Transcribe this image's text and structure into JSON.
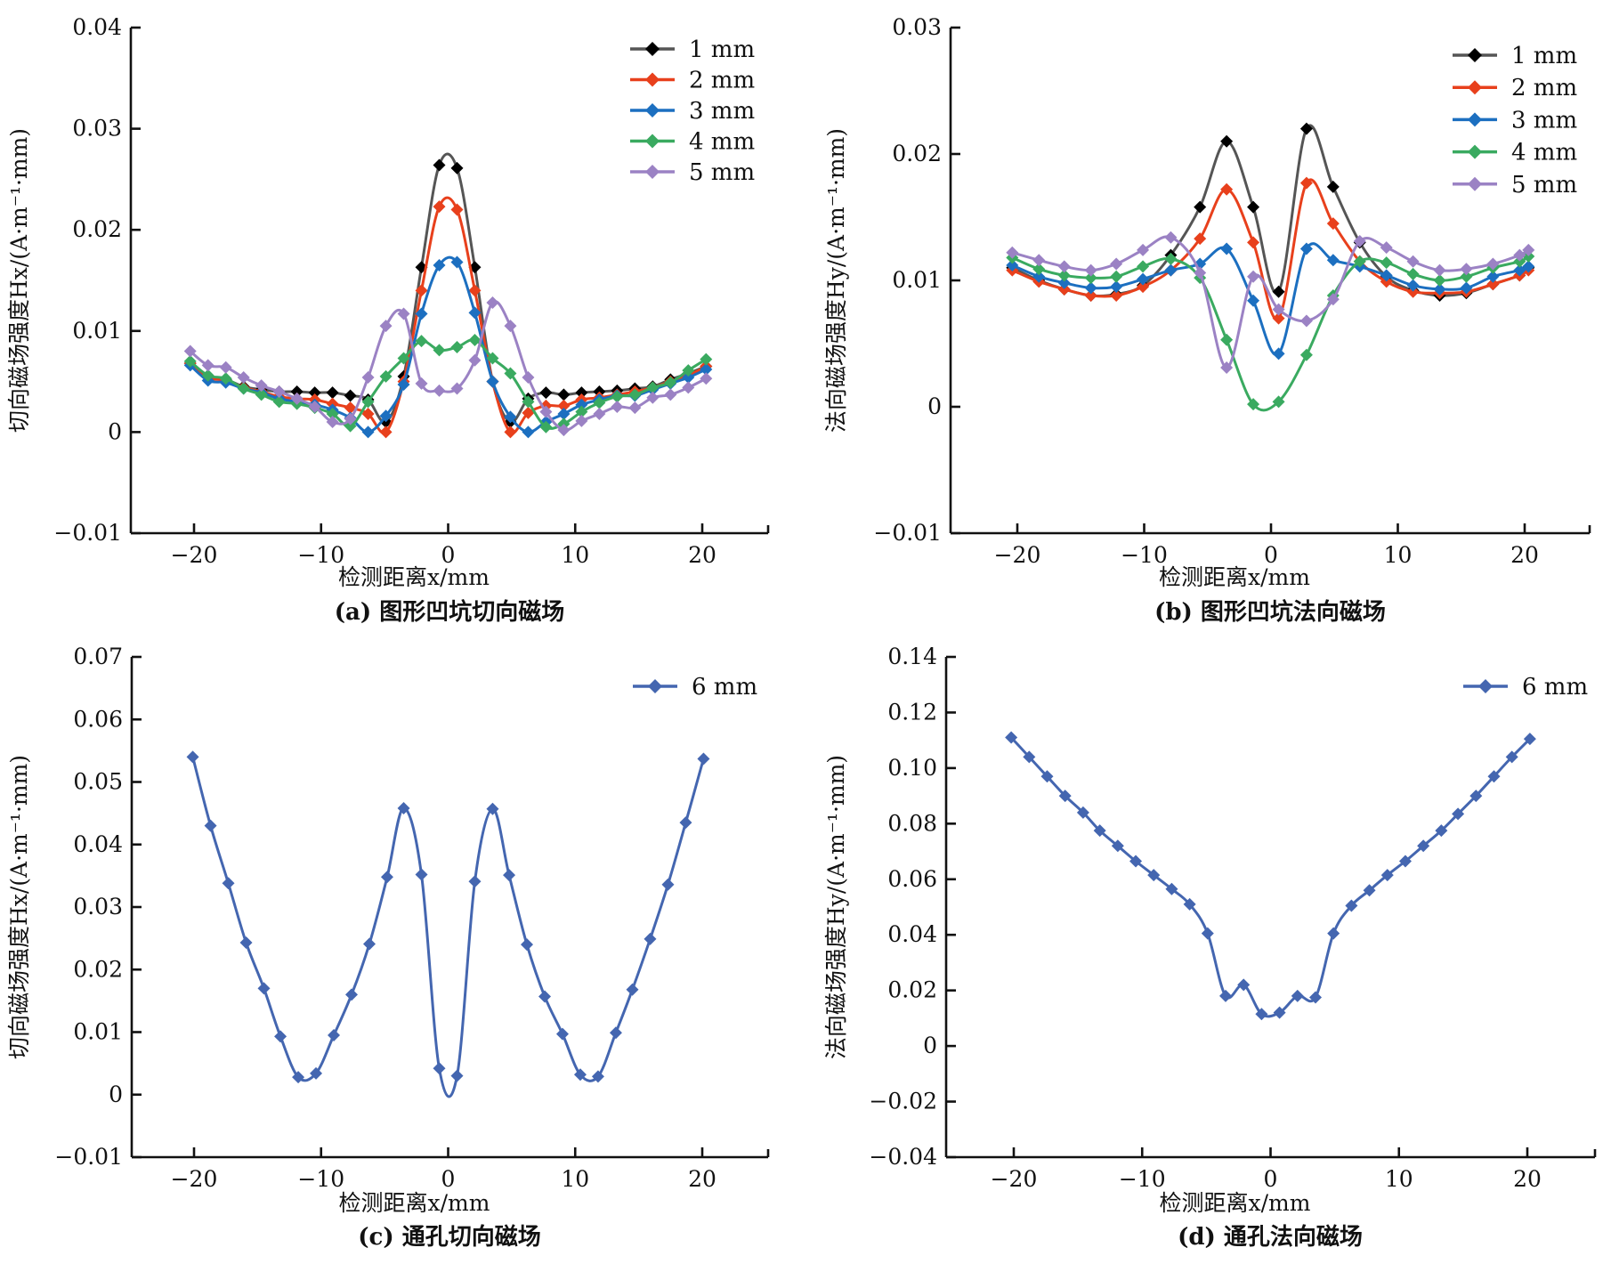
{
  "chart_data": [
    {
      "id": "a",
      "type": "line",
      "caption": "(a) 图形凹坑切向磁场",
      "title": "",
      "xlabel": "检测距离x/mm",
      "ylabel": "切向磁场强度Hx/(A·m⁻¹·mm)",
      "xlim": [
        -25,
        25
      ],
      "ylim": [
        -0.01,
        0.04
      ],
      "xticks": [
        -20,
        -10,
        0,
        10,
        20
      ],
      "xtick_labels": [
        "−20",
        "−10",
        "0",
        "10",
        "20"
      ],
      "yticks": [
        -0.01,
        0,
        0.01,
        0.02,
        0.03,
        0.04
      ],
      "ytick_labels": [
        "−0.01",
        "0",
        "0.01",
        "0.02",
        "0.03",
        "0.04"
      ],
      "grid": false,
      "legend_position": "top-right",
      "x": [
        -20.3,
        -18.9,
        -17.5,
        -16.1,
        -14.7,
        -13.3,
        -11.9,
        -10.5,
        -9.1,
        -7.7,
        -6.3,
        -4.9,
        -3.5,
        -2.1,
        -0.7,
        0.7,
        2.1,
        3.5,
        4.9,
        6.3,
        7.7,
        9.1,
        10.5,
        11.9,
        13.3,
        14.7,
        16.1,
        17.5,
        18.9,
        20.3
      ],
      "series": [
        {
          "name": "1 mm",
          "color": "#000000",
          "line_color": "#555555",
          "values": [
            0.0068,
            0.0055,
            0.0052,
            0.0045,
            0.0042,
            0.004,
            0.004,
            0.0039,
            0.0039,
            0.0036,
            0.0032,
            0.001,
            0.0055,
            0.0163,
            0.0264,
            0.0261,
            0.0163,
            0.005,
            0.001,
            0.0033,
            0.0039,
            0.0037,
            0.0039,
            0.004,
            0.0041,
            0.0043,
            0.0045,
            0.0052,
            0.0058,
            0.0065
          ]
        },
        {
          "name": "2 mm",
          "color": "#e8401c",
          "line_color": "#e8401c",
          "values": [
            0.0068,
            0.0054,
            0.0051,
            0.0044,
            0.004,
            0.0035,
            0.0033,
            0.0032,
            0.0028,
            0.0024,
            0.0018,
            0.0,
            0.005,
            0.014,
            0.0223,
            0.022,
            0.014,
            0.005,
            0.0,
            0.0019,
            0.0026,
            0.0026,
            0.0032,
            0.0034,
            0.0037,
            0.004,
            0.0044,
            0.005,
            0.0056,
            0.0065
          ]
        },
        {
          "name": "3 mm",
          "color": "#1c6fc0",
          "line_color": "#1c6fc0",
          "values": [
            0.0066,
            0.0051,
            0.0049,
            0.0043,
            0.0039,
            0.0033,
            0.003,
            0.0027,
            0.0022,
            0.0014,
            0.0,
            0.0016,
            0.0047,
            0.0117,
            0.0165,
            0.0168,
            0.0118,
            0.005,
            0.0015,
            0.0,
            0.001,
            0.0018,
            0.0027,
            0.0032,
            0.0036,
            0.0036,
            0.0042,
            0.0048,
            0.0054,
            0.0062
          ]
        },
        {
          "name": "4 mm",
          "color": "#3aaa60",
          "line_color": "#3aaa60",
          "values": [
            0.007,
            0.0056,
            0.0053,
            0.0043,
            0.0037,
            0.003,
            0.0028,
            0.0024,
            0.0018,
            0.0006,
            0.003,
            0.0055,
            0.0073,
            0.009,
            0.0081,
            0.0084,
            0.0091,
            0.0073,
            0.0058,
            0.003,
            0.0005,
            0.0008,
            0.002,
            0.0029,
            0.0035,
            0.0037,
            0.0044,
            0.0049,
            0.0061,
            0.0072
          ]
        },
        {
          "name": "5 mm",
          "color": "#9b82c4",
          "line_color": "#9b82c4",
          "values": [
            0.008,
            0.0066,
            0.0064,
            0.0054,
            0.0046,
            0.004,
            0.0033,
            0.0025,
            0.001,
            0.0013,
            0.0054,
            0.0105,
            0.0117,
            0.0048,
            0.0041,
            0.0043,
            0.0071,
            0.0128,
            0.0105,
            0.0054,
            0.002,
            0.0002,
            0.0011,
            0.0018,
            0.0025,
            0.0024,
            0.0034,
            0.0037,
            0.0044,
            0.0053
          ]
        }
      ]
    },
    {
      "id": "b",
      "type": "line",
      "caption": "(b) 图形凹坑法向磁场",
      "title": "",
      "xlabel": "检测距离x/mm",
      "ylabel": "法向磁场强度Hy/(A·m⁻¹·mm)",
      "xlim": [
        -25,
        25
      ],
      "ylim": [
        -0.01,
        0.03
      ],
      "xticks": [
        -20,
        -10,
        0,
        10,
        20
      ],
      "xtick_labels": [
        "−20",
        "−10",
        "0",
        "10",
        "20"
      ],
      "yticks": [
        -0.01,
        0,
        0.01,
        0.02,
        0.03
      ],
      "ytick_labels": [
        "−0.01",
        "0",
        "0.01",
        "0.02",
        "0.03"
      ],
      "grid": false,
      "legend_position": "top-right",
      "x": [
        -20.4,
        -18.3,
        -16.3,
        -14.2,
        -12.2,
        -10.1,
        -7.9,
        -5.6,
        -3.5,
        -1.4,
        0.6,
        2.8,
        4.9,
        7.0,
        9.1,
        11.2,
        13.3,
        15.4,
        17.5,
        19.6,
        20.3
      ],
      "series": [
        {
          "name": "1 mm",
          "color": "#000000",
          "line_color": "#555555",
          "values": [
            0.011,
            0.01,
            0.0093,
            0.0088,
            0.0089,
            0.0096,
            0.012,
            0.0158,
            0.021,
            0.0158,
            0.0091,
            0.022,
            0.0174,
            0.013,
            0.0103,
            0.0092,
            0.0088,
            0.009,
            0.0097,
            0.0104,
            0.011
          ]
        },
        {
          "name": "2 mm",
          "color": "#e8401c",
          "line_color": "#e8401c",
          "values": [
            0.0108,
            0.0099,
            0.0093,
            0.0088,
            0.0088,
            0.0095,
            0.0108,
            0.0133,
            0.0172,
            0.013,
            0.007,
            0.0177,
            0.0145,
            0.0115,
            0.0099,
            0.0091,
            0.009,
            0.0091,
            0.0097,
            0.0104,
            0.0108
          ]
        },
        {
          "name": "3 mm",
          "color": "#1c6fc0",
          "line_color": "#1c6fc0",
          "values": [
            0.0112,
            0.0103,
            0.0098,
            0.0094,
            0.0095,
            0.0101,
            0.0108,
            0.0113,
            0.0125,
            0.0084,
            0.0042,
            0.0125,
            0.0116,
            0.0111,
            0.0104,
            0.0096,
            0.0093,
            0.0094,
            0.0103,
            0.0108,
            0.0111
          ]
        },
        {
          "name": "4 mm",
          "color": "#3aaa60",
          "line_color": "#3aaa60",
          "values": [
            0.0118,
            0.0109,
            0.0104,
            0.0102,
            0.0103,
            0.0111,
            0.0117,
            0.0102,
            0.0053,
            0.0002,
            0.0004,
            0.0041,
            0.0088,
            0.0115,
            0.0114,
            0.0105,
            0.01,
            0.0103,
            0.011,
            0.0115,
            0.0119
          ]
        },
        {
          "name": "5 mm",
          "color": "#9b82c4",
          "line_color": "#9b82c4",
          "values": [
            0.0122,
            0.0116,
            0.0111,
            0.0108,
            0.0113,
            0.0124,
            0.0134,
            0.0106,
            0.0031,
            0.0103,
            0.0077,
            0.0068,
            0.0085,
            0.0131,
            0.0126,
            0.0115,
            0.0108,
            0.0109,
            0.0113,
            0.012,
            0.0124
          ]
        }
      ]
    },
    {
      "id": "c",
      "type": "line",
      "caption": "(c) 通孔切向磁场",
      "title": "",
      "xlabel": "检测距离x/mm",
      "ylabel": "切向磁场强度Hx/(A·m⁻¹·mm)",
      "xlim": [
        -25,
        25
      ],
      "ylim": [
        -0.01,
        0.07
      ],
      "xticks": [
        -20,
        -10,
        0,
        10,
        20
      ],
      "xtick_labels": [
        "−20",
        "−10",
        "0",
        "10",
        "20"
      ],
      "yticks": [
        -0.01,
        0,
        0.01,
        0.02,
        0.03,
        0.04,
        0.05,
        0.06,
        0.07
      ],
      "ytick_labels": [
        "−0.01",
        "0",
        "0.01",
        "0.02",
        "0.03",
        "0.04",
        "0.05",
        "0.06",
        "0.07"
      ],
      "grid": false,
      "legend_position": "top-right",
      "x": [
        -20.1,
        -18.7,
        -17.3,
        -15.9,
        -14.5,
        -13.2,
        -11.8,
        -10.4,
        -9.0,
        -7.6,
        -6.2,
        -4.8,
        -3.5,
        -2.1,
        -0.7,
        0.7,
        2.1,
        3.5,
        4.8,
        6.2,
        7.6,
        9.0,
        10.4,
        11.8,
        13.2,
        14.5,
        15.9,
        17.3,
        18.7,
        20.1
      ],
      "series": [
        {
          "name": "6 mm",
          "color": "#4466b0",
          "line_color": "#4466b0",
          "values": [
            0.054,
            0.043,
            0.0338,
            0.0243,
            0.017,
            0.0093,
            0.0028,
            0.0034,
            0.0095,
            0.016,
            0.0241,
            0.0348,
            0.0458,
            0.0352,
            0.0042,
            0.003,
            0.0341,
            0.0457,
            0.0351,
            0.024,
            0.0157,
            0.0097,
            0.0032,
            0.0029,
            0.0099,
            0.0168,
            0.0249,
            0.0336,
            0.0435,
            0.0537
          ]
        }
      ]
    },
    {
      "id": "d",
      "type": "line",
      "caption": "(d) 通孔法向磁场",
      "title": "",
      "xlabel": "检测距离x/mm",
      "ylabel": "法向磁场强度Hy/(A·m⁻¹·mm)",
      "xlim": [
        -25,
        25
      ],
      "ylim": [
        -0.04,
        0.14
      ],
      "xticks": [
        -20,
        -10,
        0,
        10,
        20
      ],
      "xtick_labels": [
        "−20",
        "−10",
        "0",
        "10",
        "20"
      ],
      "yticks": [
        -0.04,
        -0.02,
        0,
        0.02,
        0.04,
        0.06,
        0.08,
        0.1,
        0.12,
        0.14
      ],
      "ytick_labels": [
        "−0.04",
        "−0.02",
        "0",
        "0.02",
        "0.04",
        "0.06",
        "0.08",
        "0.10",
        "0.12",
        "0.14"
      ],
      "grid": false,
      "legend_position": "top-right",
      "x": [
        -20.2,
        -18.8,
        -17.4,
        -16.0,
        -14.6,
        -13.3,
        -11.9,
        -10.5,
        -9.1,
        -7.7,
        -6.3,
        -4.9,
        -3.5,
        -2.1,
        -0.7,
        0.7,
        2.1,
        3.5,
        4.9,
        6.3,
        7.7,
        9.1,
        10.5,
        11.9,
        13.3,
        14.6,
        16.0,
        17.4,
        18.8,
        20.2
      ],
      "series": [
        {
          "name": "6 mm",
          "color": "#4466b0",
          "line_color": "#4466b0",
          "values": [
            0.111,
            0.104,
            0.097,
            0.09,
            0.084,
            0.0775,
            0.072,
            0.0665,
            0.0615,
            0.0565,
            0.051,
            0.0405,
            0.018,
            0.022,
            0.0115,
            0.012,
            0.018,
            0.0175,
            0.0405,
            0.0505,
            0.056,
            0.0615,
            0.0665,
            0.072,
            0.0775,
            0.0835,
            0.09,
            0.097,
            0.104,
            0.1105
          ]
        }
      ]
    }
  ]
}
